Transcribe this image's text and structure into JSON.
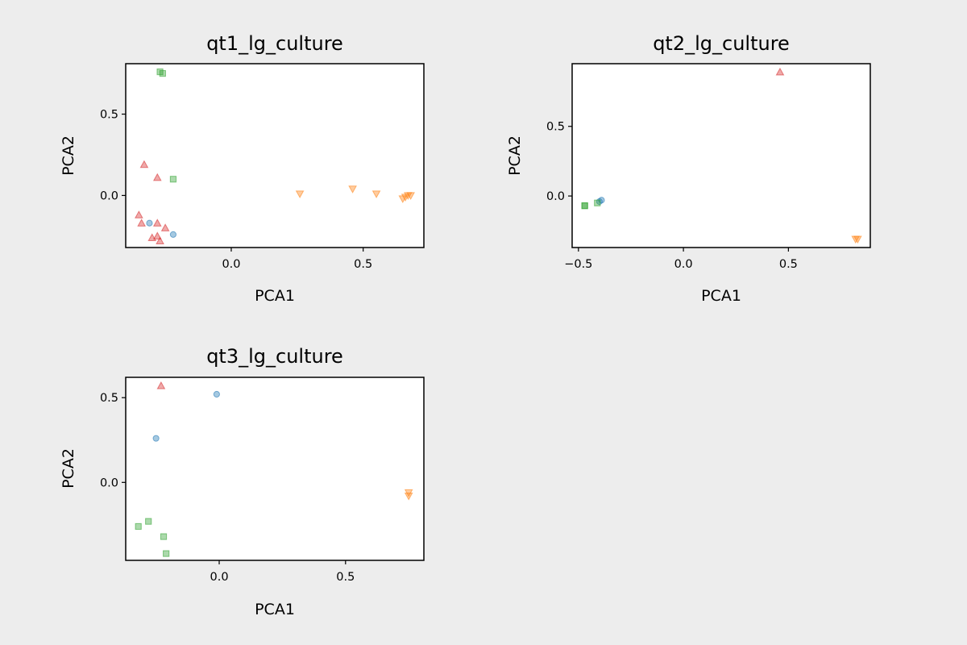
{
  "figure": {
    "background": "#ededed",
    "plot_background": "#ffffff"
  },
  "series_styles": {
    "circle": {
      "marker": "circle",
      "color": "#1f77b4"
    },
    "triangle_down": {
      "marker": "triangle-down",
      "color": "#ff7f0e"
    },
    "square": {
      "marker": "square",
      "color": "#2ca02c"
    },
    "triangle_up": {
      "marker": "triangle-up",
      "color": "#d62728"
    }
  },
  "chart_data": [
    {
      "type": "scatter",
      "title": "qt1_lg_culture",
      "xlabel": "PCA1",
      "ylabel": "PCA2",
      "xlim": [
        -0.4,
        0.73
      ],
      "ylim": [
        -0.32,
        0.81
      ],
      "xticks": [
        0.0,
        0.5
      ],
      "xtick_labels": [
        "0.0",
        "0.5"
      ],
      "yticks": [
        0.0,
        0.5
      ],
      "yticks_labels": [
        "0.0",
        "0.5"
      ],
      "grid": false,
      "series": [
        {
          "marker": "circle",
          "color": "#1f77b4",
          "points": [
            [
              -0.31,
              -0.17
            ],
            [
              -0.22,
              -0.24
            ]
          ]
        },
        {
          "marker": "triangle-down",
          "color": "#ff7f0e",
          "points": [
            [
              0.26,
              0.01
            ],
            [
              0.46,
              0.04
            ],
            [
              0.55,
              0.01
            ],
            [
              0.65,
              -0.02
            ],
            [
              0.66,
              -0.01
            ],
            [
              0.67,
              0.0
            ],
            [
              0.68,
              0.0
            ]
          ]
        },
        {
          "marker": "square",
          "color": "#2ca02c",
          "points": [
            [
              -0.27,
              0.76
            ],
            [
              -0.26,
              0.75
            ],
            [
              -0.22,
              0.1
            ]
          ]
        },
        {
          "marker": "triangle-up",
          "color": "#d62728",
          "points": [
            [
              -0.33,
              0.19
            ],
            [
              -0.28,
              0.11
            ],
            [
              -0.35,
              -0.12
            ],
            [
              -0.34,
              -0.17
            ],
            [
              -0.28,
              -0.17
            ],
            [
              -0.25,
              -0.2
            ],
            [
              -0.28,
              -0.25
            ],
            [
              -0.3,
              -0.26
            ],
            [
              -0.27,
              -0.28
            ]
          ]
        }
      ]
    },
    {
      "type": "scatter",
      "title": "qt2_lg_culture",
      "xlabel": "PCA1",
      "ylabel": "PCA2",
      "xlim": [
        -0.53,
        0.89
      ],
      "ylim": [
        -0.37,
        0.95
      ],
      "xticks": [
        -0.5,
        0.0,
        0.5
      ],
      "xtick_labels": [
        "−0.5",
        "0.0",
        "0.5"
      ],
      "yticks": [
        0.0,
        0.5
      ],
      "yticks_labels": [
        "0.0",
        "0.5"
      ],
      "grid": false,
      "series": [
        {
          "marker": "circle",
          "color": "#1f77b4",
          "points": [
            [
              -0.4,
              -0.04
            ],
            [
              -0.39,
              -0.03
            ]
          ]
        },
        {
          "marker": "triangle-down",
          "color": "#ff7f0e",
          "points": [
            [
              0.82,
              -0.31
            ],
            [
              0.83,
              -0.31
            ]
          ]
        },
        {
          "marker": "square",
          "color": "#2ca02c",
          "points": [
            [
              -0.47,
              -0.07
            ],
            [
              -0.47,
              -0.07
            ],
            [
              -0.41,
              -0.05
            ]
          ]
        },
        {
          "marker": "triangle-up",
          "color": "#d62728",
          "points": [
            [
              0.46,
              0.89
            ]
          ]
        }
      ]
    },
    {
      "type": "scatter",
      "title": "qt3_lg_culture",
      "xlabel": "PCA1",
      "ylabel": "PCA2",
      "xlim": [
        -0.37,
        0.81
      ],
      "ylim": [
        -0.46,
        0.62
      ],
      "xticks": [
        0.0,
        0.5
      ],
      "xtick_labels": [
        "0.0",
        "0.5"
      ],
      "yticks": [
        0.0,
        0.5
      ],
      "yticks_labels": [
        "0.0",
        "0.5"
      ],
      "grid": false,
      "series": [
        {
          "marker": "circle",
          "color": "#1f77b4",
          "points": [
            [
              -0.01,
              0.52
            ],
            [
              -0.25,
              0.26
            ]
          ]
        },
        {
          "marker": "triangle-down",
          "color": "#ff7f0e",
          "points": [
            [
              0.75,
              -0.06
            ],
            [
              0.75,
              -0.08
            ]
          ]
        },
        {
          "marker": "square",
          "color": "#2ca02c",
          "points": [
            [
              -0.28,
              -0.23
            ],
            [
              -0.32,
              -0.26
            ],
            [
              -0.22,
              -0.32
            ],
            [
              -0.21,
              -0.42
            ]
          ]
        },
        {
          "marker": "triangle-up",
          "color": "#d62728",
          "points": [
            [
              -0.23,
              0.57
            ]
          ]
        }
      ]
    }
  ]
}
